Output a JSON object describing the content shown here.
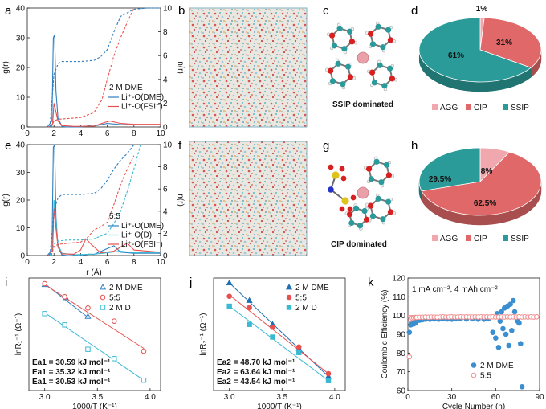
{
  "panels": {
    "a": "a",
    "b": "b",
    "c": "c",
    "d": "d",
    "e": "e",
    "f": "f",
    "g": "g",
    "h": "h",
    "i": "i",
    "j": "j",
    "k": "k"
  },
  "captions": {
    "c": "SSIP dominated",
    "g": "CIP dominated"
  },
  "colors": {
    "dme": "#2e7fc1",
    "fsi": "#e8504e",
    "d": "#39b9d3",
    "agg": "#f0a8ae",
    "cip": "#e06868",
    "ssip": "#2a9b98",
    "dme_k": "#3b8fd0",
    "solvent_k": "#f08e8e"
  },
  "chart_data": [
    {
      "id": "a",
      "type": "line",
      "xlabel": "",
      "ylabel": "g(r)",
      "y2label": "n(r)",
      "xlim": [
        0,
        10
      ],
      "ylim": [
        0,
        40
      ],
      "y2lim": [
        0,
        10
      ],
      "xticks": [
        "0",
        "2",
        "4",
        "6",
        "8",
        "10"
      ],
      "yticks": [
        "0",
        "10",
        "20",
        "30",
        "40"
      ],
      "y2ticks": [
        "0",
        "2",
        "4",
        "6",
        "8",
        "10"
      ],
      "legend_title": "2 M DME",
      "series": [
        {
          "name": "Li⁺-O(DME)",
          "color": "#2e7fc1",
          "axis": "left",
          "style": "solid",
          "x": [
            1.5,
            1.85,
            1.95,
            2.05,
            2.15,
            2.3,
            2.6,
            3.0,
            4.0,
            4.6,
            5.0,
            6.0,
            7.0,
            8.0,
            10.0
          ],
          "y": [
            0,
            2,
            30,
            31,
            12,
            3,
            0.2,
            0,
            0,
            0.4,
            0.3,
            1.2,
            0.8,
            0.7,
            0.7
          ]
        },
        {
          "name": "Li⁺-O(FSI⁻)",
          "color": "#e8504e",
          "axis": "left",
          "style": "solid",
          "x": [
            1.6,
            1.9,
            2.0,
            2.1,
            2.3,
            2.6,
            3.5,
            5.0,
            5.8,
            6.2,
            7.0,
            8.0,
            10.0
          ],
          "y": [
            0,
            1,
            8,
            6,
            2,
            0.5,
            0.2,
            0.3,
            1.5,
            2.0,
            1.2,
            0.9,
            0.9
          ]
        },
        {
          "name": "",
          "color": "#2e7fc1",
          "axis": "right",
          "style": "dashed",
          "x": [
            1.7,
            2.0,
            2.3,
            2.6,
            3.0,
            4.0,
            5.0,
            5.5,
            6.0,
            6.5,
            7.0,
            8.0,
            9.0,
            10.0
          ],
          "y": [
            0,
            4.4,
            5.3,
            5.5,
            5.5,
            5.5,
            5.6,
            5.9,
            6.5,
            8.0,
            9.3,
            9.9,
            10.0,
            10.0
          ]
        },
        {
          "name": "",
          "color": "#e8504e",
          "axis": "right",
          "style": "dashed",
          "x": [
            1.8,
            2.0,
            2.3,
            3.0,
            4.0,
            5.0,
            5.6,
            6.0,
            6.5,
            7.0,
            7.5,
            8.0
          ],
          "y": [
            0,
            0.5,
            0.65,
            0.7,
            0.8,
            1.2,
            2.3,
            4.0,
            6.0,
            7.5,
            8.8,
            10.0
          ]
        }
      ]
    },
    {
      "id": "e",
      "type": "line",
      "xlabel": "r (Å)",
      "ylabel": "g(r)",
      "y2label": "n(r)",
      "xlim": [
        0,
        10
      ],
      "ylim": [
        0,
        40
      ],
      "y2lim": [
        0,
        10
      ],
      "xticks": [
        "0",
        "2",
        "4",
        "6",
        "8",
        "10"
      ],
      "yticks": [
        "0",
        "10",
        "20",
        "30",
        "40"
      ],
      "y2ticks": [
        "0",
        "2",
        "4",
        "6",
        "8",
        "10"
      ],
      "legend_title": "5:5",
      "series": [
        {
          "name": "Li⁺-O(DME)",
          "color": "#2e7fc1",
          "axis": "left",
          "style": "solid",
          "x": [
            1.5,
            1.85,
            1.95,
            2.05,
            2.15,
            2.3,
            2.6,
            3.0,
            4.0,
            4.6,
            5.0,
            6.0,
            6.5,
            7.0,
            8.0,
            10.0
          ],
          "y": [
            0,
            2,
            39,
            40,
            14,
            3,
            0.2,
            0,
            0,
            0.5,
            0.4,
            2.5,
            3.5,
            1.2,
            0.8,
            0.8
          ]
        },
        {
          "name": "Li⁺-O(D)",
          "color": "#39b9d3",
          "axis": "left",
          "style": "solid",
          "x": [
            1.6,
            1.9,
            2.0,
            2.1,
            2.3,
            2.6,
            3.5,
            5.0,
            6.0,
            7.0,
            8.0,
            10.0
          ],
          "y": [
            0,
            3,
            20,
            15,
            4,
            0.8,
            0.3,
            0.5,
            1.0,
            1.6,
            1.0,
            1.0
          ]
        },
        {
          "name": "Li⁺-O(FSI⁻)",
          "color": "#e8504e",
          "axis": "left",
          "style": "solid",
          "x": [
            1.6,
            1.9,
            2.0,
            2.1,
            2.3,
            2.6,
            3.5,
            4.0,
            4.4,
            4.8,
            5.5,
            6.5,
            7.5,
            8.0,
            10.0
          ],
          "y": [
            0,
            2,
            17,
            12,
            3,
            0.6,
            0.5,
            2.0,
            6.0,
            4.0,
            1.0,
            1.6,
            4.5,
            2.0,
            1.2
          ]
        },
        {
          "name": "",
          "color": "#2e7fc1",
          "axis": "right",
          "style": "dashed",
          "x": [
            1.7,
            2.0,
            2.3,
            2.6,
            3.0,
            4.0,
            5.0,
            5.5,
            6.0,
            6.5,
            7.0,
            7.5,
            8.0
          ],
          "y": [
            0,
            4.0,
            5.2,
            5.5,
            5.5,
            5.5,
            5.6,
            6.0,
            6.8,
            7.8,
            8.6,
            9.2,
            10.0
          ]
        },
        {
          "name": "",
          "color": "#39b9d3",
          "axis": "right",
          "style": "dashed",
          "x": [
            1.7,
            2.0,
            2.3,
            3.0,
            4.0,
            5.0,
            6.0,
            6.5,
            7.0,
            7.5,
            8.0,
            8.5
          ],
          "y": [
            0,
            1.0,
            1.3,
            1.4,
            1.4,
            1.5,
            2.0,
            2.9,
            4.0,
            5.8,
            7.8,
            10.0
          ]
        },
        {
          "name": "",
          "color": "#e8504e",
          "axis": "right",
          "style": "dashed",
          "x": [
            1.8,
            2.0,
            2.3,
            3.0,
            4.0,
            4.5,
            5.0,
            5.5,
            6.0,
            6.5,
            7.0,
            7.5,
            8.0
          ],
          "y": [
            0,
            0.8,
            1.0,
            1.1,
            1.2,
            1.6,
            2.3,
            2.6,
            3.0,
            4.6,
            6.4,
            7.8,
            9.0
          ]
        }
      ]
    },
    {
      "id": "d",
      "type": "pie",
      "labels": [
        "AGG",
        "CIP",
        "SSIP"
      ],
      "values": [
        1,
        31,
        61
      ],
      "value_labels": [
        "1%",
        "31%",
        "61%"
      ],
      "colors": [
        "#f0a8ae",
        "#e06868",
        "#2a9b98"
      ]
    },
    {
      "id": "h",
      "type": "pie",
      "labels": [
        "AGG",
        "CIP",
        "SSIP"
      ],
      "values": [
        8,
        62.5,
        29.5
      ],
      "value_labels": [
        "8%",
        "62.5%",
        "29.5%"
      ],
      "colors": [
        "#f0a8ae",
        "#e06868",
        "#2a9b98"
      ]
    },
    {
      "id": "i",
      "type": "scatter",
      "xlabel": "1000/T (K⁻¹)",
      "ylabel": "lnR₁⁻¹ (Ω⁻¹)",
      "xlim": [
        2.85,
        4.1
      ],
      "ylim": [
        -6.0,
        0.0
      ],
      "xticks": [
        "3.0",
        "3.5",
        "4.0"
      ],
      "series": [
        {
          "name": "2 M DME",
          "color": "#2e7fc1",
          "marker": "triangle",
          "x": [
            3.0,
            3.2,
            3.41
          ],
          "y": [
            -0.35,
            -1.05,
            -2.05
          ],
          "fit": {
            "x": [
              3.0,
              3.41
            ],
            "y": [
              -0.3,
              -2.1
            ]
          }
        },
        {
          "name": "5:5",
          "color": "#e8504e",
          "marker": "circle",
          "x": [
            3.0,
            3.19,
            3.41,
            3.66,
            3.94
          ],
          "y": [
            -0.3,
            -1.0,
            -1.6,
            -2.3,
            -3.9
          ],
          "fit": {
            "x": [
              3.0,
              3.94
            ],
            "y": [
              -0.35,
              -3.75
            ]
          }
        },
        {
          "name": "2 M D",
          "color": "#39b9d3",
          "marker": "square",
          "x": [
            3.0,
            3.19,
            3.41,
            3.66,
            3.94
          ],
          "y": [
            -1.9,
            -2.5,
            -3.8,
            -4.3,
            -5.45
          ],
          "fit": {
            "x": [
              3.0,
              3.94
            ],
            "y": [
              -1.85,
              -5.45
            ]
          }
        }
      ],
      "annotations": [
        {
          "text": "Ea1 = 30.59 kJ mol⁻¹",
          "color": "#e8504e"
        },
        {
          "text": "Ea1 = 35.32 kJ mol⁻¹",
          "color": "#2e7fc1"
        },
        {
          "text": "Ea1 = 30.53 kJ mol⁻¹",
          "color": "#39b9d3"
        }
      ]
    },
    {
      "id": "j",
      "type": "scatter",
      "xlabel": "1000/T (K⁻¹)",
      "ylabel": "lnR₂⁻¹ (Ω⁻¹)",
      "xlim": [
        2.85,
        4.1
      ],
      "ylim": [
        -8.0,
        0.0
      ],
      "xticks": [
        "3.0",
        "3.5",
        "4.0"
      ],
      "series": [
        {
          "name": "2 M DME",
          "color": "#1f6fb4",
          "marker": "triangle-filled",
          "x": [
            3.0,
            3.19,
            3.41,
            3.66,
            3.94
          ],
          "y": [
            -0.35,
            -1.6,
            -3.3,
            -5.0,
            -7.0
          ],
          "fit": {
            "x": [
              3.0,
              3.94
            ],
            "y": [
              -0.35,
              -7.0
            ]
          }
        },
        {
          "name": "5:5",
          "color": "#e8504e",
          "marker": "circle-filled",
          "x": [
            3.0,
            3.19,
            3.41,
            3.66,
            3.94
          ],
          "y": [
            -1.3,
            -2.1,
            -3.5,
            -4.9,
            -6.8
          ],
          "fit": {
            "x": [
              3.0,
              3.94
            ],
            "y": [
              -1.2,
              -6.8
            ]
          }
        },
        {
          "name": "2 M D",
          "color": "#39b9d3",
          "marker": "square-filled",
          "x": [
            3.0,
            3.19,
            3.41,
            3.66,
            3.94
          ],
          "y": [
            -2.0,
            -3.3,
            -4.2,
            -5.3,
            -7.3
          ],
          "fit": {
            "x": [
              3.0,
              3.94
            ],
            "y": [
              -2.0,
              -7.3
            ]
          }
        }
      ],
      "annotations": [
        {
          "text": "Ea2 = 48.70 kJ mol⁻¹",
          "color": "#e8504e"
        },
        {
          "text": "Ea2 = 63.64 kJ mol⁻¹",
          "color": "#1f6fb4"
        },
        {
          "text": "Ea2 = 43.54 kJ mol⁻¹",
          "color": "#39b9d3"
        }
      ]
    },
    {
      "id": "k",
      "type": "scatter",
      "xlabel": "Cycle Number (n)",
      "ylabel": "Coulombic Efficiency (%)",
      "xlim": [
        0,
        90
      ],
      "ylim": [
        60,
        120
      ],
      "xticks": [
        "0",
        "30",
        "60",
        "90"
      ],
      "yticks": [
        "60",
        "70",
        "80",
        "90",
        "100",
        "110",
        "120"
      ],
      "note": "1 mA cm⁻², 4 mAh cm⁻²",
      "series": [
        {
          "name": "2 M DME",
          "color": "#3b8fd0",
          "marker": "circle-filled",
          "x": [
            1,
            2,
            3,
            4,
            5,
            6,
            8,
            10,
            12,
            15,
            18,
            21,
            24,
            27,
            30,
            33,
            36,
            40,
            44,
            48,
            52,
            55,
            58,
            60,
            61,
            62,
            63,
            64,
            65,
            66,
            67,
            68,
            69,
            70,
            71,
            72,
            73,
            74,
            75,
            76,
            77,
            78
          ],
          "y": [
            91,
            95,
            96,
            95.5,
            96,
            97,
            97.5,
            97.8,
            98,
            98,
            98.1,
            98,
            98.2,
            98.1,
            98,
            98.2,
            98.3,
            98.1,
            98.2,
            98,
            98,
            98.2,
            91,
            88,
            101,
            83,
            97,
            102,
            93,
            104,
            90,
            105,
            84,
            106,
            92,
            108,
            102,
            99,
            97,
            96,
            85,
            62
          ]
        },
        {
          "name": "5:5",
          "color": "#f08e8e",
          "marker": "circle",
          "x": [
            1,
            2,
            3,
            4,
            5,
            6,
            8,
            10,
            12,
            14,
            16,
            18,
            20,
            22,
            24,
            26,
            28,
            30,
            32,
            34,
            36,
            38,
            40,
            42,
            44,
            46,
            48,
            50,
            52,
            54,
            56,
            58,
            60,
            62,
            64,
            66,
            68,
            70,
            72,
            74,
            76,
            78,
            80,
            82,
            84,
            86,
            88
          ],
          "y": [
            78,
            98,
            98.6,
            98.8,
            99,
            99,
            99.1,
            99.1,
            99.2,
            99.1,
            99.2,
            99.2,
            99.1,
            99.2,
            99.3,
            99.2,
            99.2,
            99.3,
            99.2,
            99.2,
            99.3,
            99.2,
            99.3,
            99.2,
            99.2,
            99.3,
            99.2,
            99.3,
            99.2,
            99.3,
            99.2,
            99.3,
            99.2,
            99.2,
            99.3,
            99.2,
            99.3,
            99.2,
            99.3,
            99.2,
            99.3,
            99.2,
            99.3,
            99.2,
            99.3,
            99.2,
            99.3
          ]
        }
      ]
    }
  ]
}
